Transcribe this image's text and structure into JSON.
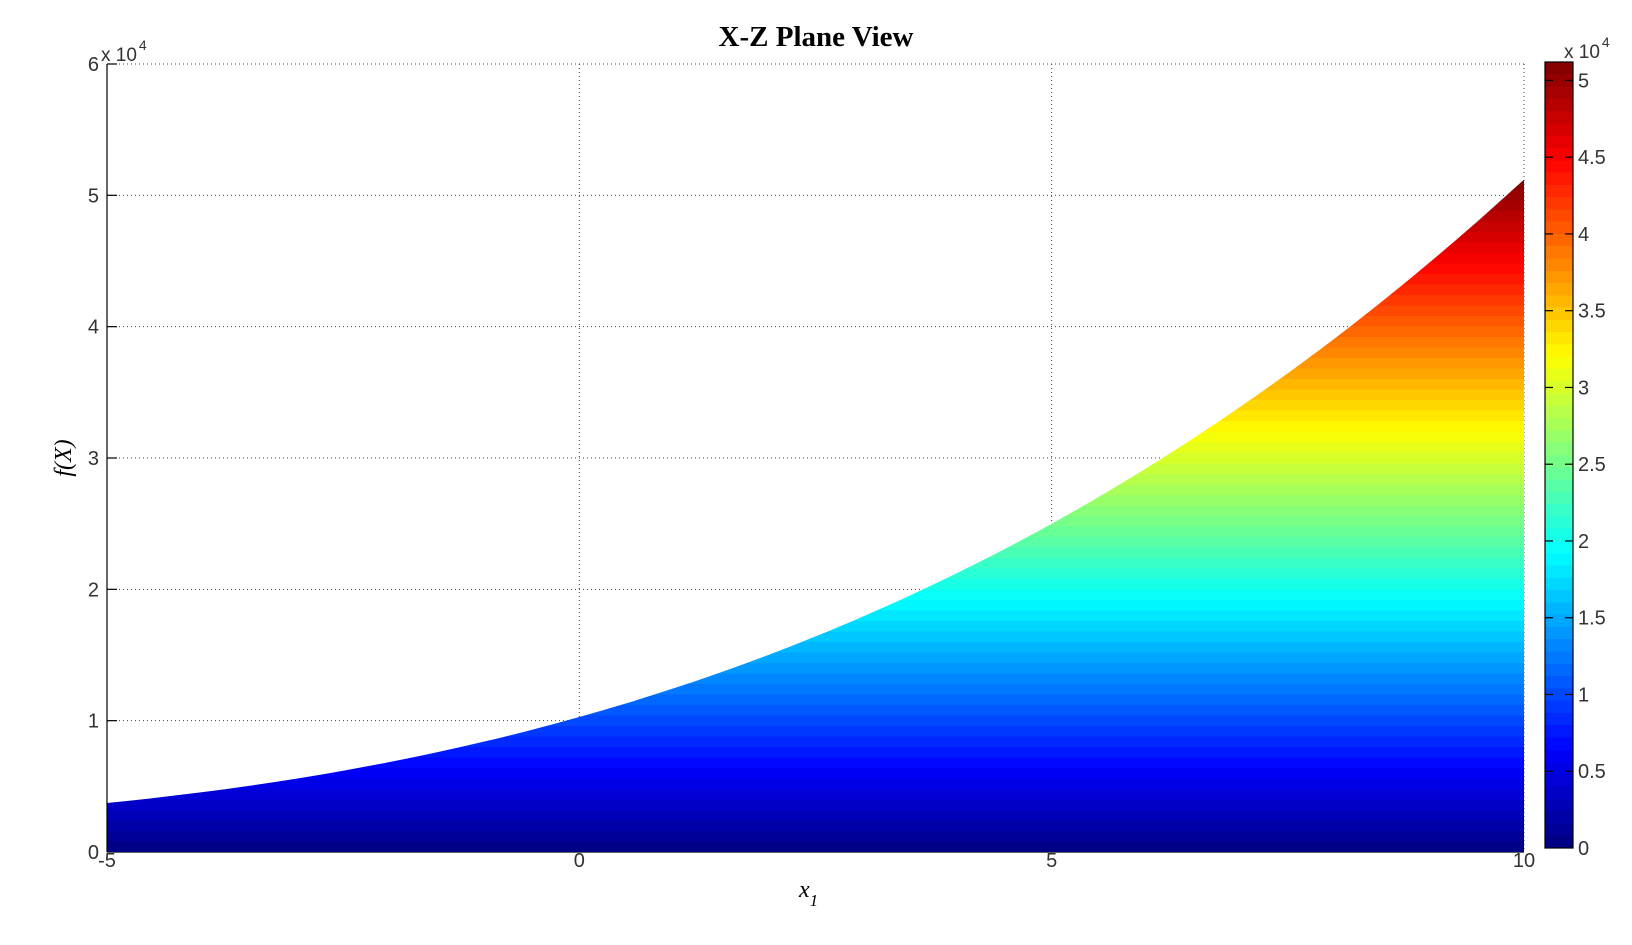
{
  "figure": {
    "title": "X-Z Plane View",
    "xlabel": {
      "base": "x",
      "sub": "1"
    },
    "ylabel": "f(X)",
    "y_axis_multiplier": {
      "base": "x 10",
      "exp": "4"
    },
    "colorbar_multiplier": {
      "base": "x 10",
      "exp": "4"
    },
    "background": "#ffffff",
    "axis_color": "#000000",
    "grid_color": "#404040"
  },
  "chart_data": {
    "type": "area",
    "title": "X-Z Plane View",
    "xlabel": "x_1",
    "ylabel": "f(X)",
    "xlim": [
      -5,
      10
    ],
    "ylim": [
      0,
      60000
    ],
    "grid": "dotted",
    "legend": "none",
    "colormap": "jet",
    "color_bands": 64,
    "color_max": 51200,
    "xticks": {
      "values": [
        -5,
        0,
        5,
        10
      ],
      "labels": [
        "-5",
        "0",
        "5",
        "10"
      ]
    },
    "yticks": {
      "values": [
        0,
        10000,
        20000,
        30000,
        40000,
        50000,
        60000
      ],
      "labels": [
        "0",
        "1",
        "2",
        "3",
        "4",
        "5",
        "6"
      ],
      "multiplier": "x 10^4"
    },
    "colorbar": {
      "position": "right",
      "multiplier": "x 10^4",
      "ticks": {
        "values": [
          0,
          5000,
          10000,
          15000,
          20000,
          25000,
          30000,
          35000,
          40000,
          45000,
          50000
        ],
        "labels": [
          "0",
          "0.5",
          "1",
          "1.5",
          "2",
          "2.5",
          "3",
          "3.5",
          "4",
          "4.5",
          "5"
        ]
      }
    },
    "envelope": {
      "x": [
        -5,
        -4.5,
        -4,
        -3.5,
        -3,
        -2.5,
        -2,
        -1.5,
        -1,
        -0.5,
        0,
        0.5,
        1,
        1.5,
        2,
        2.5,
        3,
        3.5,
        4,
        4.5,
        5,
        5.5,
        6,
        6.5,
        7,
        7.5,
        8,
        8.5,
        9,
        9.5,
        10
      ],
      "f_top": [
        3730,
        4111,
        4544,
        5033,
        5581,
        6190,
        6864,
        7607,
        8422,
        9312,
        10280,
        11330,
        12465,
        13688,
        15003,
        16413,
        17921,
        19530,
        21245,
        23067,
        25001,
        27050,
        29217,
        31506,
        33918,
        36459,
        39132,
        41939,
        44884,
        47970,
        51200
      ],
      "f_bottom": 0
    }
  }
}
